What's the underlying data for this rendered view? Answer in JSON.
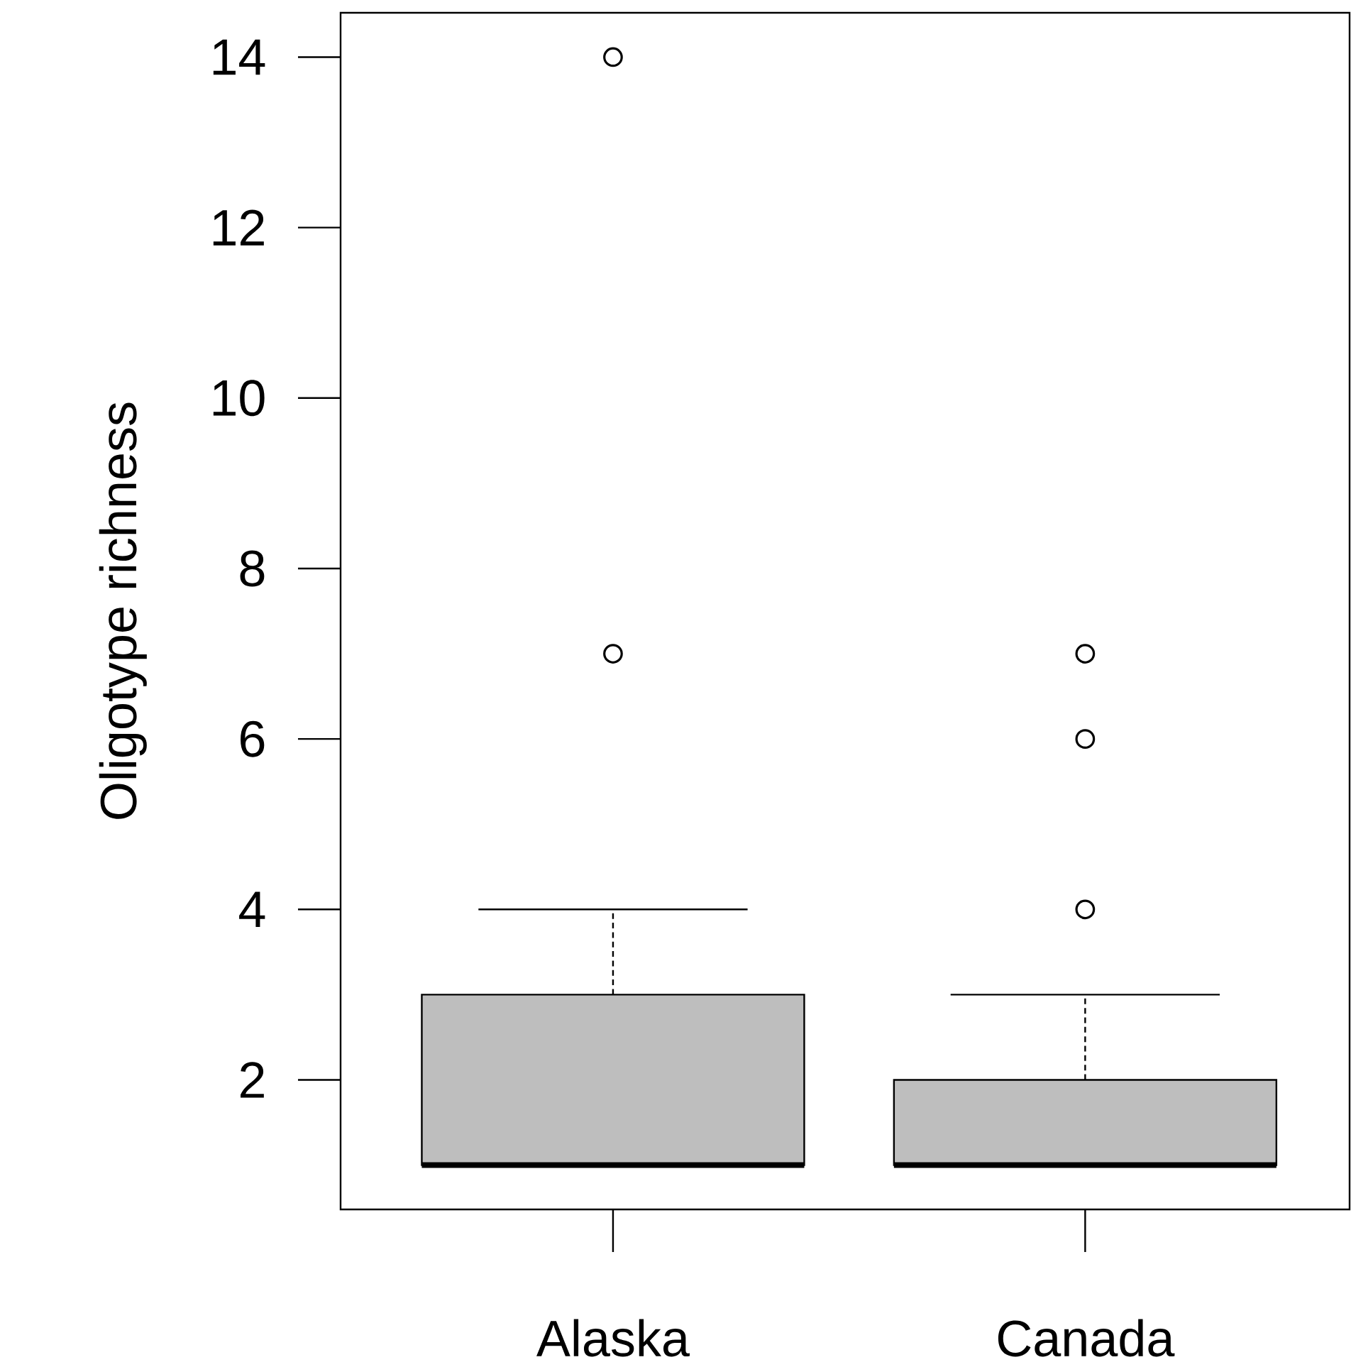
{
  "chart_data": {
    "type": "box",
    "ylabel": "Oligotype richness",
    "categories": [
      "Alaska",
      "Canada"
    ],
    "boxes": [
      {
        "low": 1,
        "q1": 1,
        "median": 1,
        "q3": 3,
        "high": 4,
        "outliers": [
          7,
          14
        ]
      },
      {
        "low": 1,
        "q1": 1,
        "median": 1,
        "q3": 2,
        "high": 3,
        "outliers": [
          4,
          6,
          7
        ]
      }
    ],
    "color": "#bebebe",
    "marker": "circle",
    "ylim": [
      0.48,
      14.52
    ],
    "yticks": [
      2,
      4,
      6,
      8,
      10,
      12,
      14
    ]
  }
}
